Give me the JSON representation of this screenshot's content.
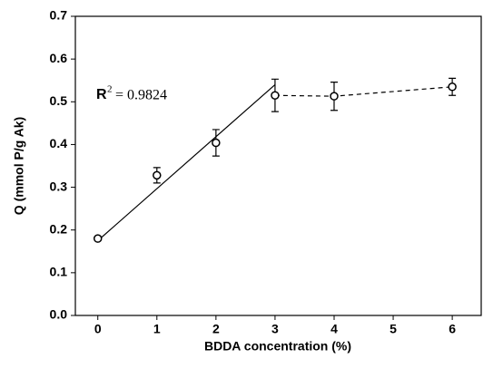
{
  "chart_data": {
    "type": "scatter",
    "x_label": "BDDA concentration (%)",
    "y_label": "Q (mmol P/g Ak)",
    "x": [
      0,
      1,
      2,
      3,
      4,
      6
    ],
    "series": [
      {
        "values": [
          0.18,
          0.328,
          0.404,
          0.515,
          0.513,
          0.535
        ],
        "errors": [
          0.004,
          0.018,
          0.031,
          0.038,
          0.033,
          0.02
        ],
        "color": "#000000"
      }
    ],
    "fit_line": {
      "x": [
        0,
        3
      ],
      "y": [
        0.175,
        0.54
      ]
    },
    "annotation": {
      "symbol": "R",
      "exponent": "2",
      "text": "= 0.9824"
    },
    "xlim": [
      -0.38,
      6.49
    ],
    "ylim": [
      0,
      0.7
    ],
    "xticks": [
      0,
      1,
      2,
      3,
      4,
      5,
      6
    ],
    "yticks": [
      {
        "value": 0,
        "label": "0.0"
      },
      0.1,
      0.2,
      0.3,
      0.4,
      0.5,
      0.6,
      0.7
    ]
  }
}
